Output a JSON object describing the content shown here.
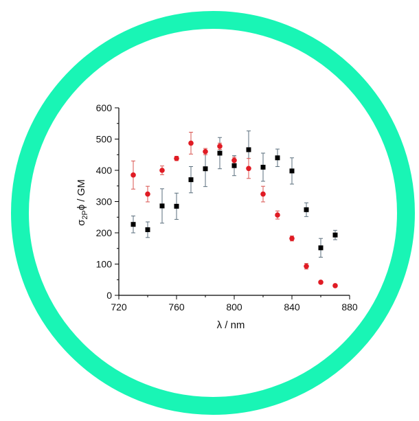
{
  "colors": {
    "ring": "#19f5b5",
    "series_square": "#000000",
    "series_circle": "#e01b24",
    "errorbar_square": "#5a6e7c",
    "errorbar_circle": "#d9534f"
  },
  "chart_data": {
    "type": "scatter",
    "title": "",
    "xlabel": "λ / nm",
    "ylabel_main": "σ",
    "ylabel_sub": "2P",
    "ylabel_rest": "ϕ / GM",
    "xlim": [
      720,
      880
    ],
    "ylim": [
      0,
      600
    ],
    "xticks": [
      720,
      760,
      800,
      840,
      880
    ],
    "yticks": [
      0,
      100,
      200,
      300,
      400,
      500,
      600
    ],
    "x_minor_step": 20,
    "y_minor_step": 50,
    "grid": false,
    "legend": "none",
    "series": [
      {
        "marker": "square",
        "points": [
          {
            "x": 730,
            "y": 227,
            "err": 27
          },
          {
            "x": 740,
            "y": 210,
            "err": 25
          },
          {
            "x": 750,
            "y": 286,
            "err": 55
          },
          {
            "x": 760,
            "y": 285,
            "err": 42
          },
          {
            "x": 770,
            "y": 370,
            "err": 42
          },
          {
            "x": 780,
            "y": 405,
            "err": 57
          },
          {
            "x": 790,
            "y": 455,
            "err": 50
          },
          {
            "x": 800,
            "y": 415,
            "err": 32
          },
          {
            "x": 810,
            "y": 466,
            "err": 60
          },
          {
            "x": 820,
            "y": 410,
            "err": 45
          },
          {
            "x": 830,
            "y": 440,
            "err": 28
          },
          {
            "x": 840,
            "y": 398,
            "err": 42
          },
          {
            "x": 850,
            "y": 274,
            "err": 22
          },
          {
            "x": 860,
            "y": 152,
            "err": 30
          },
          {
            "x": 870,
            "y": 193,
            "err": 15
          }
        ]
      },
      {
        "marker": "circle",
        "points": [
          {
            "x": 730,
            "y": 385,
            "err": 45
          },
          {
            "x": 740,
            "y": 324,
            "err": 25
          },
          {
            "x": 750,
            "y": 400,
            "err": 14
          },
          {
            "x": 760,
            "y": 438,
            "err": 7
          },
          {
            "x": 770,
            "y": 487,
            "err": 35
          },
          {
            "x": 780,
            "y": 460,
            "err": 10
          },
          {
            "x": 790,
            "y": 477,
            "err": 10
          },
          {
            "x": 800,
            "y": 432,
            "err": 10
          },
          {
            "x": 810,
            "y": 406,
            "err": 32
          },
          {
            "x": 820,
            "y": 324,
            "err": 25
          },
          {
            "x": 830,
            "y": 257,
            "err": 13
          },
          {
            "x": 840,
            "y": 182,
            "err": 8
          },
          {
            "x": 850,
            "y": 93,
            "err": 9
          },
          {
            "x": 860,
            "y": 42,
            "err": 3
          },
          {
            "x": 870,
            "y": 31,
            "err": 3
          }
        ]
      }
    ]
  }
}
